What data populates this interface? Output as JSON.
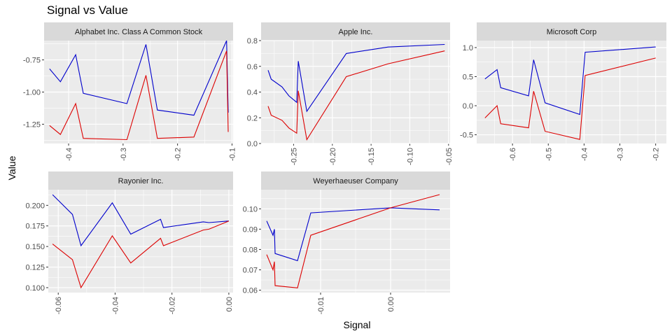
{
  "figure": {
    "title": "Signal vs Value",
    "xlabel": "Signal",
    "ylabel": "Value"
  },
  "colors": {
    "series_blue": "#0000CC",
    "series_red": "#DD0000",
    "panel_bg": "#EBEBEB",
    "strip_bg": "#D9D9D9",
    "grid": "#FFFFFF"
  },
  "chart_data": [
    {
      "type": "line",
      "title": "Alphabet Inc. Class A Common Stock",
      "xlim": [
        -0.445,
        -0.098
      ],
      "ylim": [
        -1.4,
        -0.6
      ],
      "xticks": [
        -0.4,
        -0.3,
        -0.2,
        -0.1
      ],
      "xtick_labels": [
        "-0.4",
        "-0.3",
        "-0.2",
        "-0.1"
      ],
      "yticks": [
        -1.25,
        -1.0,
        -0.75
      ],
      "ytick_labels": [
        "-1.25",
        "-1.00",
        "-0.75"
      ],
      "series": [
        {
          "color": "#0000CC",
          "points": [
            [
              -0.435,
              -0.82
            ],
            [
              -0.415,
              -0.92
            ],
            [
              -0.387,
              -0.71
            ],
            [
              -0.373,
              -1.01
            ],
            [
              -0.293,
              -1.09
            ],
            [
              -0.258,
              -0.63
            ],
            [
              -0.237,
              -1.14
            ],
            [
              -0.17,
              -1.18
            ],
            [
              -0.11,
              -0.6
            ],
            [
              -0.107,
              -1.16
            ]
          ]
        },
        {
          "color": "#DD0000",
          "points": [
            [
              -0.435,
              -1.26
            ],
            [
              -0.415,
              -1.33
            ],
            [
              -0.387,
              -1.09
            ],
            [
              -0.373,
              -1.36
            ],
            [
              -0.293,
              -1.37
            ],
            [
              -0.258,
              -0.87
            ],
            [
              -0.237,
              -1.36
            ],
            [
              -0.17,
              -1.35
            ],
            [
              -0.11,
              -0.68
            ],
            [
              -0.107,
              -1.31
            ]
          ]
        }
      ]
    },
    {
      "type": "line",
      "title": "Apple Inc.",
      "xlim": [
        -0.292,
        -0.048
      ],
      "ylim": [
        0.0,
        0.8
      ],
      "xticks": [
        -0.25,
        -0.2,
        -0.15,
        -0.1,
        -0.05
      ],
      "xtick_labels": [
        "-0.25",
        "-0.20",
        "-0.15",
        "-0.10",
        "-0.05"
      ],
      "yticks": [
        0.0,
        0.2,
        0.4,
        0.6,
        0.8
      ],
      "ytick_labels": [
        "0.0",
        "0.2",
        "0.4",
        "0.6",
        "0.8"
      ],
      "series": [
        {
          "color": "#0000CC",
          "points": [
            [
              -0.283,
              0.57
            ],
            [
              -0.279,
              0.5
            ],
            [
              -0.265,
              0.44
            ],
            [
              -0.256,
              0.37
            ],
            [
              -0.246,
              0.32
            ],
            [
              -0.244,
              0.64
            ],
            [
              -0.233,
              0.25
            ],
            [
              -0.182,
              0.7
            ],
            [
              -0.128,
              0.75
            ],
            [
              -0.055,
              0.77
            ]
          ]
        },
        {
          "color": "#DD0000",
          "points": [
            [
              -0.283,
              0.29
            ],
            [
              -0.279,
              0.22
            ],
            [
              -0.265,
              0.18
            ],
            [
              -0.256,
              0.12
            ],
            [
              -0.246,
              0.08
            ],
            [
              -0.244,
              0.41
            ],
            [
              -0.233,
              0.03
            ],
            [
              -0.182,
              0.52
            ],
            [
              -0.128,
              0.62
            ],
            [
              -0.055,
              0.72
            ]
          ]
        }
      ]
    },
    {
      "type": "line",
      "title": "Microsoft Corp",
      "xlim": [
        -0.7,
        -0.17
      ],
      "ylim": [
        -0.65,
        1.12
      ],
      "xticks": [
        -0.6,
        -0.5,
        -0.4,
        -0.3,
        -0.2
      ],
      "xtick_labels": [
        "-0.6",
        "-0.5",
        "-0.4",
        "-0.3",
        "-0.2"
      ],
      "yticks": [
        -0.5,
        0.0,
        0.5,
        1.0
      ],
      "ytick_labels": [
        "-0.5",
        "0.0",
        "0.5",
        "1.0"
      ],
      "series": [
        {
          "color": "#0000CC",
          "points": [
            [
              -0.677,
              0.46
            ],
            [
              -0.643,
              0.62
            ],
            [
              -0.633,
              0.31
            ],
            [
              -0.555,
              0.17
            ],
            [
              -0.541,
              0.79
            ],
            [
              -0.509,
              0.05
            ],
            [
              -0.412,
              -0.15
            ],
            [
              -0.397,
              0.92
            ],
            [
              -0.2,
              1.01
            ]
          ]
        },
        {
          "color": "#DD0000",
          "points": [
            [
              -0.677,
              -0.21
            ],
            [
              -0.643,
              0.0
            ],
            [
              -0.633,
              -0.31
            ],
            [
              -0.555,
              -0.38
            ],
            [
              -0.541,
              0.25
            ],
            [
              -0.509,
              -0.44
            ],
            [
              -0.412,
              -0.58
            ],
            [
              -0.397,
              0.52
            ],
            [
              -0.2,
              0.82
            ]
          ]
        }
      ]
    },
    {
      "type": "line",
      "title": "Rayonier Inc.",
      "xlim": [
        -0.0635,
        0.0015
      ],
      "ylim": [
        0.094,
        0.219
      ],
      "xticks": [
        -0.06,
        -0.04,
        -0.02,
        0.0
      ],
      "xtick_labels": [
        "-0.06",
        "-0.04",
        "-0.02",
        "0.00"
      ],
      "yticks": [
        0.1,
        0.125,
        0.15,
        0.175,
        0.2
      ],
      "ytick_labels": [
        "0.100",
        "0.125",
        "0.150",
        "0.175",
        "0.200"
      ],
      "series": [
        {
          "color": "#0000CC",
          "points": [
            [
              -0.062,
              0.213
            ],
            [
              -0.055,
              0.189
            ],
            [
              -0.052,
              0.151
            ],
            [
              -0.041,
              0.203
            ],
            [
              -0.0345,
              0.165
            ],
            [
              -0.024,
              0.183
            ],
            [
              -0.023,
              0.173
            ],
            [
              -0.009,
              0.18
            ],
            [
              -0.007,
              0.179
            ],
            [
              0.0,
              0.181
            ]
          ]
        },
        {
          "color": "#DD0000",
          "points": [
            [
              -0.062,
              0.153
            ],
            [
              -0.055,
              0.134
            ],
            [
              -0.052,
              0.1
            ],
            [
              -0.041,
              0.163
            ],
            [
              -0.0345,
              0.13
            ],
            [
              -0.024,
              0.16
            ],
            [
              -0.023,
              0.151
            ],
            [
              -0.009,
              0.17
            ],
            [
              -0.007,
              0.171
            ],
            [
              0.0,
              0.181
            ]
          ]
        }
      ]
    },
    {
      "type": "line",
      "title": "Weyerhaeuser Company",
      "xlim": [
        -0.0185,
        0.0085
      ],
      "ylim": [
        0.0588,
        0.1094
      ],
      "xticks": [
        -0.01,
        0.0
      ],
      "xtick_labels": [
        "-0.01",
        "0.00"
      ],
      "yticks": [
        0.06,
        0.07,
        0.08,
        0.09,
        0.1
      ],
      "ytick_labels": [
        "0.06",
        "0.07",
        "0.08",
        "0.09",
        "0.10"
      ],
      "series": [
        {
          "color": "#0000CC",
          "points": [
            [
              -0.0177,
              0.094
            ],
            [
              -0.0168,
              0.087
            ],
            [
              -0.0166,
              0.09
            ],
            [
              -0.0165,
              0.078
            ],
            [
              -0.0133,
              0.0745
            ],
            [
              -0.0114,
              0.098
            ],
            [
              0.0,
              0.1005
            ],
            [
              0.007,
              0.0995
            ]
          ]
        },
        {
          "color": "#DD0000",
          "points": [
            [
              -0.0177,
              0.0775
            ],
            [
              -0.0168,
              0.07
            ],
            [
              -0.0166,
              0.074
            ],
            [
              -0.0165,
              0.0622
            ],
            [
              -0.0133,
              0.0611
            ],
            [
              -0.0114,
              0.087
            ],
            [
              0.0,
              0.1005
            ],
            [
              0.007,
              0.107
            ]
          ]
        }
      ]
    }
  ]
}
